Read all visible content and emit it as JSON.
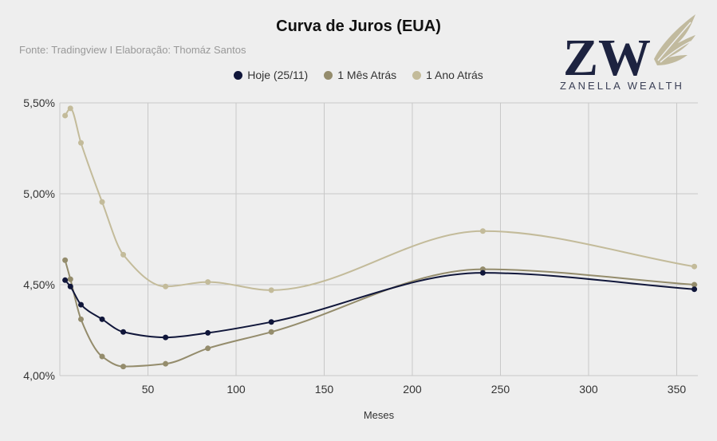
{
  "title": "Curva de Juros (EUA)",
  "source": "Fonte: Tradingview I Elaboração: Thomáz Santos",
  "logo": {
    "monogram": "ZW",
    "text": "ZANELLA WEALTH",
    "color": "#1d2340",
    "wing_color": "#b8b08f"
  },
  "chart_data": {
    "type": "line",
    "title": "Curva de Juros (EUA)",
    "xlabel": "Meses",
    "ylabel": "",
    "xlim": [
      0,
      362
    ],
    "ylim": [
      4.0,
      5.5
    ],
    "xticks": [
      50,
      100,
      150,
      200,
      250,
      300,
      350
    ],
    "yticks": [
      4.0,
      4.5,
      5.0,
      5.5
    ],
    "ytick_labels": [
      "4,00%",
      "4,50%",
      "5,00%",
      "5,50%"
    ],
    "grid": true,
    "legend_position": "top",
    "x": [
      3,
      6,
      12,
      24,
      36,
      60,
      84,
      120,
      240,
      360
    ],
    "series": [
      {
        "name": "Hoje (25/11)",
        "color": "#10163a",
        "values": [
          4.525,
          4.49,
          4.39,
          4.31,
          4.24,
          4.21,
          4.235,
          4.295,
          4.565,
          4.475
        ]
      },
      {
        "name": "1 Mês Atrás",
        "color": "#948c6c",
        "values": [
          4.635,
          4.53,
          4.31,
          4.105,
          4.05,
          4.065,
          4.15,
          4.24,
          4.585,
          4.5
        ]
      },
      {
        "name": "1 Ano Atrás",
        "color": "#c3bb9a",
        "values": [
          5.43,
          5.47,
          5.28,
          4.955,
          4.665,
          4.49,
          4.515,
          4.47,
          4.795,
          4.6
        ]
      }
    ]
  }
}
